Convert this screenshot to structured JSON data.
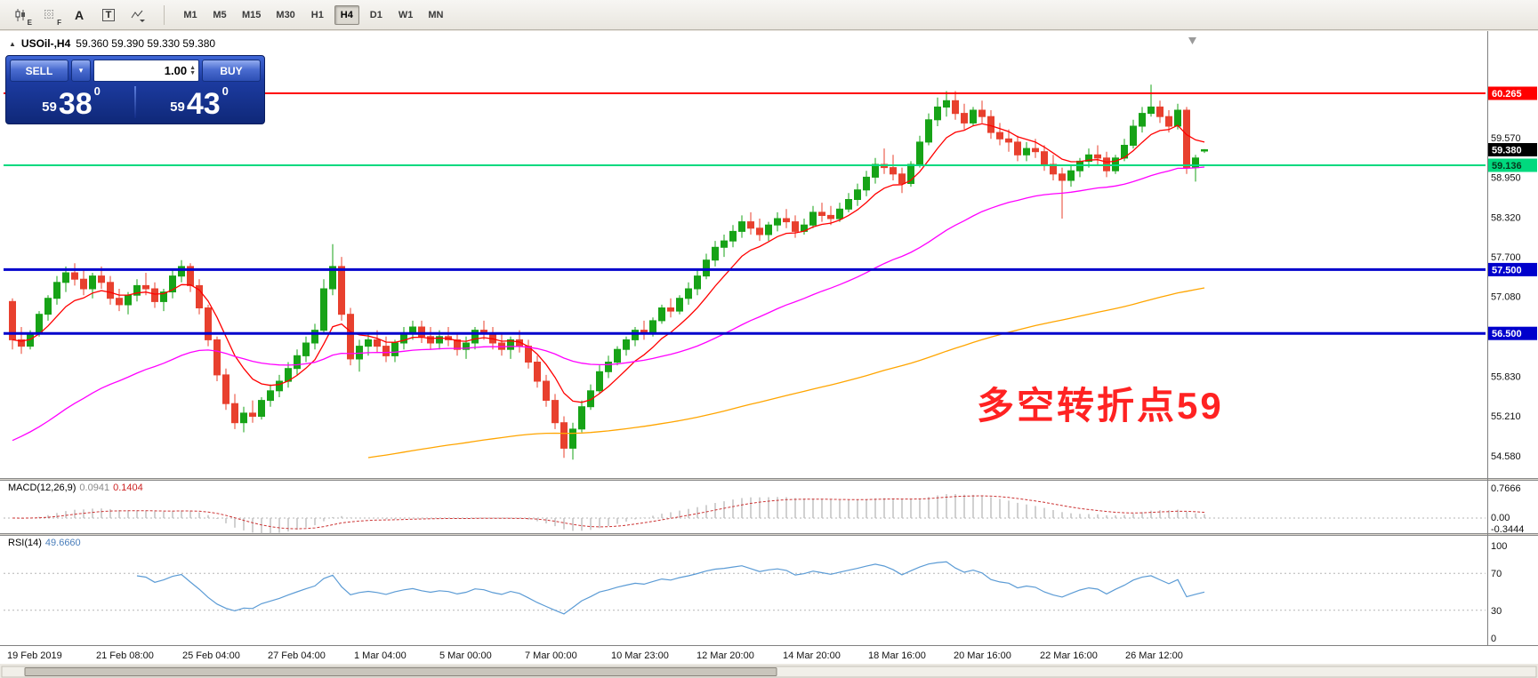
{
  "window": {
    "symbol": "USOil-,H4",
    "ohlc_text": "59.360 59.390 59.330 59.380",
    "collapse_glyph": "▲"
  },
  "toolbar": {
    "tools": [
      {
        "name": "candlestick-style-icon",
        "letter": "E",
        "icon": "candles"
      },
      {
        "name": "grid-icon",
        "letter": "F",
        "icon": "grid"
      },
      {
        "name": "text-label-icon",
        "letter": "A",
        "icon": "letter"
      },
      {
        "name": "text-box-icon",
        "letter": "T",
        "icon": "boxed"
      },
      {
        "name": "drawing-tools-dropdown-icon",
        "letter": "",
        "icon": "cursor"
      }
    ],
    "timeframes": [
      "M1",
      "M5",
      "M15",
      "M30",
      "H1",
      "H4",
      "D1",
      "W1",
      "MN"
    ],
    "active_timeframe": "H4"
  },
  "trade_panel": {
    "sell_label": "SELL",
    "buy_label": "BUY",
    "volume": "1.00",
    "sell_price": {
      "small": "59",
      "big": "38",
      "sup": "0"
    },
    "buy_price": {
      "small": "59",
      "big": "43",
      "sup": "0"
    }
  },
  "annotation": {
    "text": "多空转折点59",
    "color": "#ff2222"
  },
  "indicators": {
    "macd": {
      "name": "MACD(12,26,9)",
      "value1": "0.0941",
      "value2": "0.1404"
    },
    "rsi": {
      "name": "RSI(14)",
      "value": "49.6660"
    }
  },
  "chart_data": {
    "type": "candlestick",
    "symbol": "USOil-",
    "timeframe": "H4",
    "last_bar": {
      "open": 59.36,
      "high": 59.39,
      "low": 59.33,
      "close": 59.38
    },
    "up_color": "#17a317",
    "down_color": "#e8402e",
    "ohlc": [
      [
        57.0,
        57.05,
        56.25,
        56.4
      ],
      [
        56.4,
        56.6,
        56.18,
        56.3
      ],
      [
        56.3,
        56.55,
        56.25,
        56.5
      ],
      [
        56.5,
        56.85,
        56.45,
        56.8
      ],
      [
        56.8,
        57.1,
        56.7,
        57.05
      ],
      [
        57.05,
        57.4,
        56.95,
        57.3
      ],
      [
        57.3,
        57.55,
        57.15,
        57.45
      ],
      [
        57.45,
        57.6,
        57.25,
        57.35
      ],
      [
        57.35,
        57.5,
        57.1,
        57.2
      ],
      [
        57.2,
        57.45,
        57.05,
        57.4
      ],
      [
        57.4,
        57.55,
        57.2,
        57.3
      ],
      [
        57.3,
        57.4,
        56.95,
        57.05
      ],
      [
        57.05,
        57.2,
        56.85,
        56.95
      ],
      [
        56.95,
        57.15,
        56.8,
        57.1
      ],
      [
        57.1,
        57.35,
        57.0,
        57.25
      ],
      [
        57.25,
        57.45,
        57.1,
        57.2
      ],
      [
        57.2,
        57.3,
        56.9,
        57.0
      ],
      [
        57.0,
        57.2,
        56.85,
        57.15
      ],
      [
        57.15,
        57.5,
        57.05,
        57.4
      ],
      [
        57.4,
        57.65,
        57.3,
        57.55
      ],
      [
        57.55,
        57.6,
        57.15,
        57.25
      ],
      [
        57.25,
        57.35,
        56.8,
        56.9
      ],
      [
        56.9,
        56.95,
        56.3,
        56.4
      ],
      [
        56.4,
        56.45,
        55.75,
        55.85
      ],
      [
        55.85,
        55.95,
        55.3,
        55.4
      ],
      [
        55.4,
        55.55,
        55.0,
        55.1
      ],
      [
        55.1,
        55.35,
        54.95,
        55.25
      ],
      [
        55.25,
        55.45,
        55.1,
        55.2
      ],
      [
        55.2,
        55.5,
        55.15,
        55.45
      ],
      [
        55.45,
        55.7,
        55.35,
        55.6
      ],
      [
        55.6,
        55.85,
        55.5,
        55.75
      ],
      [
        55.75,
        56.05,
        55.65,
        55.95
      ],
      [
        55.95,
        56.25,
        55.85,
        56.15
      ],
      [
        56.15,
        56.45,
        56.05,
        56.35
      ],
      [
        56.35,
        56.65,
        56.25,
        56.55
      ],
      [
        56.55,
        57.35,
        56.5,
        57.2
      ],
      [
        57.2,
        57.9,
        57.1,
        57.55
      ],
      [
        57.55,
        57.7,
        56.7,
        56.8
      ],
      [
        56.8,
        56.9,
        56.0,
        56.1
      ],
      [
        56.1,
        56.4,
        55.9,
        56.3
      ],
      [
        56.3,
        56.5,
        56.15,
        56.4
      ],
      [
        56.4,
        56.55,
        56.2,
        56.3
      ],
      [
        56.3,
        56.45,
        56.05,
        56.15
      ],
      [
        56.15,
        56.4,
        56.05,
        56.35
      ],
      [
        56.35,
        56.6,
        56.25,
        56.5
      ],
      [
        56.5,
        56.7,
        56.4,
        56.6
      ],
      [
        56.6,
        56.7,
        56.35,
        56.45
      ],
      [
        56.45,
        56.6,
        56.25,
        56.35
      ],
      [
        56.35,
        56.55,
        56.25,
        56.45
      ],
      [
        56.45,
        56.6,
        56.3,
        56.4
      ],
      [
        56.4,
        56.5,
        56.15,
        56.25
      ],
      [
        56.25,
        56.45,
        56.1,
        56.35
      ],
      [
        56.35,
        56.6,
        56.25,
        56.55
      ],
      [
        56.55,
        56.7,
        56.4,
        56.5
      ],
      [
        56.5,
        56.6,
        56.25,
        56.35
      ],
      [
        56.35,
        56.5,
        56.15,
        56.25
      ],
      [
        56.25,
        56.45,
        56.1,
        56.4
      ],
      [
        56.4,
        56.55,
        56.2,
        56.3
      ],
      [
        56.3,
        56.4,
        55.95,
        56.05
      ],
      [
        56.05,
        56.15,
        55.65,
        55.75
      ],
      [
        55.75,
        55.85,
        55.35,
        55.45
      ],
      [
        55.45,
        55.55,
        55.0,
        55.1
      ],
      [
        55.1,
        55.2,
        54.55,
        54.7
      ],
      [
        54.7,
        55.1,
        54.52,
        55.0
      ],
      [
        55.0,
        55.45,
        54.95,
        55.35
      ],
      [
        55.35,
        55.7,
        55.3,
        55.6
      ],
      [
        55.6,
        56.0,
        55.55,
        55.9
      ],
      [
        55.9,
        56.15,
        55.8,
        56.05
      ],
      [
        56.05,
        56.3,
        56.0,
        56.25
      ],
      [
        56.25,
        56.45,
        56.15,
        56.4
      ],
      [
        56.4,
        56.6,
        56.3,
        56.55
      ],
      [
        56.55,
        56.7,
        56.4,
        56.5
      ],
      [
        56.5,
        56.75,
        56.45,
        56.7
      ],
      [
        56.7,
        56.95,
        56.65,
        56.9
      ],
      [
        56.9,
        57.05,
        56.75,
        56.85
      ],
      [
        56.85,
        57.1,
        56.8,
        57.05
      ],
      [
        57.05,
        57.3,
        56.95,
        57.2
      ],
      [
        57.2,
        57.5,
        57.1,
        57.4
      ],
      [
        57.4,
        57.75,
        57.35,
        57.65
      ],
      [
        57.65,
        57.95,
        57.55,
        57.85
      ],
      [
        57.85,
        58.05,
        57.7,
        57.95
      ],
      [
        57.95,
        58.2,
        57.85,
        58.1
      ],
      [
        58.1,
        58.35,
        58.0,
        58.25
      ],
      [
        58.25,
        58.4,
        58.05,
        58.15
      ],
      [
        58.15,
        58.3,
        57.95,
        58.05
      ],
      [
        58.05,
        58.25,
        57.95,
        58.2
      ],
      [
        58.2,
        58.4,
        58.1,
        58.3
      ],
      [
        58.3,
        58.45,
        58.15,
        58.25
      ],
      [
        58.25,
        58.35,
        58.0,
        58.1
      ],
      [
        58.1,
        58.3,
        58.05,
        58.2
      ],
      [
        58.2,
        58.5,
        58.15,
        58.4
      ],
      [
        58.4,
        58.55,
        58.25,
        58.35
      ],
      [
        58.35,
        58.5,
        58.2,
        58.3
      ],
      [
        58.3,
        58.55,
        58.25,
        58.45
      ],
      [
        58.45,
        58.7,
        58.4,
        58.6
      ],
      [
        58.6,
        58.85,
        58.5,
        58.75
      ],
      [
        58.75,
        59.05,
        58.65,
        58.95
      ],
      [
        58.95,
        59.25,
        58.85,
        59.15
      ],
      [
        59.15,
        59.4,
        59.0,
        59.1
      ],
      [
        59.1,
        59.3,
        58.9,
        59.0
      ],
      [
        59.0,
        59.1,
        58.7,
        58.85
      ],
      [
        58.85,
        59.2,
        58.8,
        59.15
      ],
      [
        59.15,
        59.6,
        59.1,
        59.5
      ],
      [
        59.5,
        59.95,
        59.45,
        59.85
      ],
      [
        59.85,
        60.2,
        59.75,
        60.05
      ],
      [
        60.05,
        60.3,
        59.9,
        60.15
      ],
      [
        60.15,
        60.3,
        59.85,
        59.95
      ],
      [
        59.95,
        60.1,
        59.7,
        59.8
      ],
      [
        59.8,
        60.05,
        59.75,
        60.0
      ],
      [
        60.0,
        60.15,
        59.8,
        59.9
      ],
      [
        59.9,
        60.0,
        59.55,
        59.65
      ],
      [
        59.65,
        59.8,
        59.45,
        59.55
      ],
      [
        59.55,
        59.7,
        59.35,
        59.5
      ],
      [
        59.5,
        59.6,
        59.2,
        59.3
      ],
      [
        59.3,
        59.5,
        59.2,
        59.4
      ],
      [
        59.4,
        59.55,
        59.25,
        59.35
      ],
      [
        59.35,
        59.45,
        59.05,
        59.15
      ],
      [
        59.15,
        59.3,
        58.9,
        59.0
      ],
      [
        59.0,
        59.1,
        58.3,
        58.9
      ],
      [
        58.9,
        59.15,
        58.8,
        59.05
      ],
      [
        59.05,
        59.25,
        58.95,
        59.2
      ],
      [
        59.2,
        59.4,
        59.1,
        59.3
      ],
      [
        59.3,
        59.45,
        59.15,
        59.25
      ],
      [
        59.25,
        59.35,
        58.95,
        59.05
      ],
      [
        59.05,
        59.3,
        59.0,
        59.25
      ],
      [
        59.25,
        59.55,
        59.2,
        59.45
      ],
      [
        59.45,
        59.85,
        59.4,
        59.75
      ],
      [
        59.75,
        60.05,
        59.65,
        59.95
      ],
      [
        59.95,
        60.4,
        59.9,
        60.05
      ],
      [
        60.05,
        60.15,
        59.8,
        59.9
      ],
      [
        59.9,
        60.0,
        59.65,
        59.75
      ],
      [
        59.75,
        60.1,
        59.7,
        60.0
      ],
      [
        60.0,
        60.05,
        59.0,
        59.1
      ],
      [
        59.1,
        59.3,
        58.88,
        59.25
      ],
      [
        59.36,
        59.39,
        59.33,
        59.38
      ]
    ],
    "overlays": [
      {
        "name": "ma-fast-line",
        "period": 8,
        "color": "#ff0000"
      },
      {
        "name": "ma-mid-line",
        "period": 45,
        "seed": 54.75,
        "color": "#ff00ff"
      },
      {
        "name": "ma-slow-line",
        "period": 160,
        "seed": 53.2,
        "start_index": 40,
        "color": "#ffa500"
      }
    ],
    "hlines": [
      {
        "price": 60.265,
        "color": "#ff0000",
        "width": 2
      },
      {
        "price": 59.136,
        "color": "#00d97e",
        "width": 2
      },
      {
        "price": 57.5,
        "color": "#0000cc",
        "width": 3
      },
      {
        "price": 56.5,
        "color": "#0000cc",
        "width": 3
      }
    ],
    "price_axis": {
      "plain": [
        "59.570",
        "58.950",
        "58.320",
        "57.700",
        "57.080",
        "55.830",
        "55.210",
        "54.580"
      ],
      "tagged": [
        {
          "text": "60.265",
          "price": 60.265,
          "bg": "#ff0000",
          "fg": "#ffffff"
        },
        {
          "text": "59.380",
          "price": 59.38,
          "bg": "#000000",
          "fg": "#ffffff"
        },
        {
          "text": "59.136",
          "price": 59.136,
          "bg": "#00d97e",
          "fg": "#06371d"
        },
        {
          "text": "57.500",
          "price": 57.5,
          "bg": "#0000cc",
          "fg": "#ffffff"
        },
        {
          "text": "56.500",
          "price": 56.5,
          "bg": "#0000cc",
          "fg": "#ffffff"
        }
      ]
    },
    "time_axis": [
      "19 Feb 2019",
      "21 Feb 08:00",
      "25 Feb 04:00",
      "27 Feb 04:00",
      "1 Mar 04:00",
      "5 Mar 00:00",
      "7 Mar 00:00",
      "10 Mar 23:00",
      "12 Mar 20:00",
      "14 Mar 20:00",
      "18 Mar 16:00",
      "20 Mar 16:00",
      "22 Mar 16:00",
      "26 Mar 12:00"
    ],
    "macd": {
      "params": [
        12,
        26,
        9
      ],
      "hist_color": "#bdbdbd",
      "signal_color": "#cc3333",
      "axis": [
        "0.7666",
        "0.00",
        "-0.3444"
      ]
    },
    "rsi": {
      "period": 14,
      "color": "#5b9bd5",
      "levels": [
        70,
        30
      ],
      "axis": [
        "100",
        "70",
        "30",
        "0"
      ]
    }
  }
}
